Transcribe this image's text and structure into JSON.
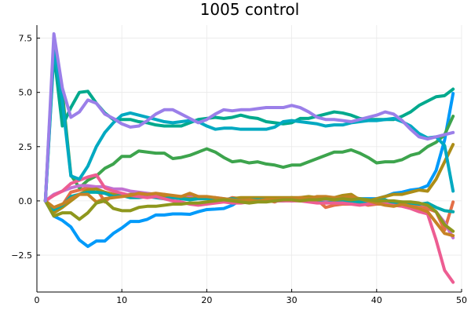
{
  "chart_data": {
    "type": "line",
    "title": "1005 control",
    "xlabel": "",
    "ylabel": "",
    "xlim": [
      0,
      50
    ],
    "ylim": [
      -4.2,
      8.1
    ],
    "xticks": [
      0,
      10,
      20,
      30,
      40,
      50
    ],
    "yticks": [
      -2.5,
      0.0,
      2.5,
      5.0,
      7.5
    ],
    "xtick_labels": [
      "0",
      "10",
      "20",
      "30",
      "40",
      "50"
    ],
    "ytick_labels": [
      "−2.5",
      "0.0",
      "2.5",
      "5.0",
      "7.5"
    ],
    "grid": true,
    "legend": false,
    "x": [
      1,
      2,
      3,
      4,
      5,
      6,
      7,
      8,
      9,
      10,
      11,
      12,
      13,
      14,
      15,
      16,
      17,
      18,
      19,
      20,
      21,
      22,
      23,
      24,
      25,
      26,
      27,
      28,
      29,
      30,
      31,
      32,
      33,
      34,
      35,
      36,
      37,
      38,
      39,
      40,
      41,
      42,
      43,
      44,
      45,
      46,
      47,
      48,
      49
    ],
    "series": [
      {
        "color": "#009afa",
        "values": [
          0.0,
          -0.7,
          -0.9,
          -1.2,
          -1.8,
          -2.1,
          -1.85,
          -1.85,
          -1.5,
          -1.25,
          -0.95,
          -0.95,
          -0.85,
          -0.65,
          -0.65,
          -0.6,
          -0.6,
          -0.62,
          -0.5,
          -0.4,
          -0.38,
          -0.35,
          -0.2,
          0.05,
          0.05,
          0.05,
          0.05,
          0.08,
          0.05,
          0.0,
          0.05,
          0.1,
          0.12,
          0.1,
          0.1,
          0.05,
          0.12,
          0.1,
          0.1,
          0.1,
          0.2,
          0.35,
          0.4,
          0.5,
          0.55,
          0.7,
          1.4,
          2.8,
          4.95
        ]
      },
      {
        "color": "#e36f47",
        "values": [
          0.0,
          -0.5,
          -0.2,
          0.4,
          0.5,
          0.6,
          0.6,
          -0.05,
          0.3,
          0.3,
          0.2,
          0.25,
          0.3,
          0.3,
          0.25,
          0.2,
          0.1,
          0.3,
          0.1,
          0.1,
          0.05,
          0.0,
          0.15,
          0.1,
          0.05,
          0.0,
          0.05,
          -0.05,
          0.1,
          0.15,
          0.1,
          0.0,
          0.05,
          -0.3,
          -0.2,
          -0.15,
          -0.15,
          -0.1,
          -0.2,
          -0.15,
          -0.15,
          -0.2,
          -0.1,
          -0.15,
          -0.2,
          -0.35,
          -0.5,
          -1.35,
          -0.05
        ]
      },
      {
        "color": "#3da44d",
        "values": [
          0.0,
          7.3,
          5.0,
          1.2,
          0.6,
          0.95,
          1.15,
          1.5,
          1.7,
          2.05,
          2.05,
          2.3,
          2.25,
          2.2,
          2.2,
          1.95,
          2.0,
          2.1,
          2.25,
          2.4,
          2.25,
          2.0,
          1.8,
          1.85,
          1.75,
          1.8,
          1.7,
          1.65,
          1.55,
          1.65,
          1.65,
          1.8,
          1.95,
          2.1,
          2.25,
          2.25,
          2.35,
          2.2,
          2.0,
          1.75,
          1.8,
          1.8,
          1.9,
          2.1,
          2.2,
          2.5,
          2.7,
          3.05,
          3.9
        ]
      },
      {
        "color": "#c271d2",
        "values": [
          0.0,
          0.3,
          0.45,
          0.6,
          0.7,
          0.7,
          0.65,
          0.65,
          0.55,
          0.55,
          0.45,
          0.4,
          0.35,
          0.3,
          0.3,
          0.2,
          0.2,
          0.15,
          0.2,
          0.15,
          0.15,
          0.1,
          0.05,
          0.05,
          0.05,
          0.05,
          0.05,
          0.05,
          0.05,
          0.05,
          0.05,
          0.0,
          0.0,
          0.0,
          -0.05,
          -0.05,
          -0.05,
          -0.05,
          -0.05,
          -0.05,
          -0.05,
          -0.05,
          -0.05,
          -0.1,
          -0.15,
          -0.2,
          -0.5,
          -1.0,
          -1.7
        ]
      },
      {
        "color": "#ac8d18",
        "values": [
          0.0,
          -0.55,
          -0.3,
          0.0,
          0.3,
          0.5,
          0.55,
          0.4,
          0.3,
          0.25,
          0.3,
          0.3,
          0.25,
          0.2,
          0.2,
          0.15,
          0.15,
          0.1,
          0.15,
          0.15,
          0.15,
          0.05,
          0.1,
          0.15,
          0.15,
          0.15,
          0.15,
          0.15,
          0.15,
          0.15,
          0.15,
          0.2,
          0.15,
          0.1,
          0.15,
          0.25,
          0.3,
          0.05,
          0.0,
          0.1,
          0.2,
          0.3,
          0.3,
          0.4,
          0.5,
          0.45,
          1.0,
          1.8,
          2.6
        ]
      },
      {
        "color": "#00a9ad",
        "values": [
          0.0,
          -0.4,
          -0.2,
          0.2,
          0.3,
          0.4,
          0.4,
          0.35,
          0.2,
          0.25,
          0.15,
          0.15,
          0.2,
          0.15,
          0.1,
          0.15,
          0.1,
          0.05,
          0.1,
          0.1,
          0.05,
          0.05,
          0.1,
          0.0,
          0.05,
          0.05,
          0.05,
          0.0,
          0.0,
          0.05,
          0.0,
          0.0,
          -0.05,
          -0.1,
          -0.05,
          0.0,
          0.0,
          -0.05,
          0.0,
          0.0,
          0.05,
          -0.1,
          -0.15,
          -0.1,
          -0.15,
          -0.1,
          -0.3,
          -0.45,
          -0.5
        ]
      },
      {
        "color": "#ed5d92",
        "values": [
          0.0,
          0.25,
          0.45,
          0.8,
          0.95,
          1.1,
          1.2,
          0.6,
          0.45,
          0.35,
          0.25,
          0.2,
          0.15,
          0.2,
          0.1,
          0.0,
          -0.05,
          -0.15,
          -0.2,
          -0.15,
          -0.1,
          -0.05,
          -0.1,
          -0.1,
          -0.05,
          0.0,
          0.0,
          0.0,
          0.0,
          0.0,
          0.0,
          -0.05,
          -0.1,
          -0.1,
          -0.1,
          -0.1,
          -0.15,
          -0.2,
          -0.15,
          -0.1,
          -0.15,
          -0.2,
          -0.25,
          -0.35,
          -0.5,
          -0.6,
          -1.8,
          -3.2,
          -3.75
        ]
      },
      {
        "color": "#c68225",
        "values": [
          0.0,
          -0.3,
          -0.15,
          0.1,
          0.3,
          0.3,
          -0.05,
          0.1,
          0.15,
          0.2,
          0.25,
          0.35,
          0.3,
          0.35,
          0.3,
          0.25,
          0.2,
          0.35,
          0.2,
          0.2,
          0.15,
          0.1,
          0.05,
          0.0,
          0.05,
          0.0,
          0.05,
          0.05,
          0.1,
          0.1,
          0.15,
          0.1,
          0.2,
          0.2,
          0.15,
          0.15,
          0.2,
          0.1,
          0.0,
          -0.1,
          -0.2,
          -0.25,
          -0.15,
          -0.25,
          -0.35,
          -0.5,
          -1.0,
          -1.5,
          -1.6
        ]
      },
      {
        "color": "#00a98d",
        "values": [
          0.0,
          6.8,
          3.45,
          4.3,
          5.0,
          5.05,
          4.5,
          4.05,
          3.75,
          3.75,
          3.75,
          3.65,
          3.6,
          3.5,
          3.45,
          3.45,
          3.45,
          3.6,
          3.75,
          3.8,
          3.85,
          3.8,
          3.85,
          3.95,
          3.85,
          3.8,
          3.65,
          3.6,
          3.55,
          3.6,
          3.8,
          3.8,
          3.9,
          4.0,
          4.1,
          4.05,
          3.95,
          3.8,
          3.75,
          3.75,
          3.75,
          3.75,
          3.9,
          4.1,
          4.4,
          4.6,
          4.8,
          4.85,
          5.15
        ]
      },
      {
        "color": "#8e971d",
        "values": [
          0.0,
          -0.7,
          -0.55,
          -0.55,
          -0.85,
          -0.55,
          -0.1,
          0.0,
          -0.35,
          -0.45,
          -0.45,
          -0.3,
          -0.25,
          -0.25,
          -0.2,
          -0.15,
          -0.15,
          -0.1,
          -0.1,
          -0.05,
          0.0,
          0.05,
          0.0,
          -0.05,
          -0.1,
          -0.05,
          -0.05,
          0.0,
          0.05,
          0.05,
          0.0,
          0.05,
          0.05,
          0.1,
          0.05,
          0.1,
          0.05,
          0.1,
          0.05,
          0.0,
          0.0,
          0.0,
          -0.05,
          -0.05,
          -0.1,
          -0.2,
          -0.5,
          -1.1,
          -1.4
        ]
      },
      {
        "color": "#00a9c1",
        "values": [
          0.0,
          7.0,
          4.6,
          1.15,
          1.0,
          1.6,
          2.5,
          3.15,
          3.6,
          3.95,
          4.05,
          3.95,
          3.85,
          3.75,
          3.65,
          3.6,
          3.65,
          3.7,
          3.65,
          3.45,
          3.3,
          3.35,
          3.35,
          3.3,
          3.3,
          3.3,
          3.3,
          3.4,
          3.65,
          3.7,
          3.65,
          3.6,
          3.55,
          3.45,
          3.5,
          3.5,
          3.6,
          3.65,
          3.7,
          3.7,
          3.75,
          3.8,
          3.65,
          3.45,
          3.1,
          2.9,
          2.95,
          2.55,
          0.45
        ]
      },
      {
        "color": "#9b7fe9",
        "values": [
          0.0,
          7.7,
          5.2,
          3.85,
          4.1,
          4.65,
          4.5,
          4.0,
          3.8,
          3.55,
          3.4,
          3.45,
          3.7,
          4.0,
          4.2,
          4.2,
          4.0,
          3.8,
          3.6,
          3.75,
          4.0,
          4.2,
          4.15,
          4.2,
          4.2,
          4.25,
          4.3,
          4.3,
          4.3,
          4.4,
          4.3,
          4.1,
          3.85,
          3.75,
          3.75,
          3.7,
          3.65,
          3.75,
          3.85,
          3.95,
          4.1,
          4.0,
          3.7,
          3.3,
          2.95,
          2.85,
          2.95,
          3.05,
          3.15
        ]
      }
    ]
  }
}
